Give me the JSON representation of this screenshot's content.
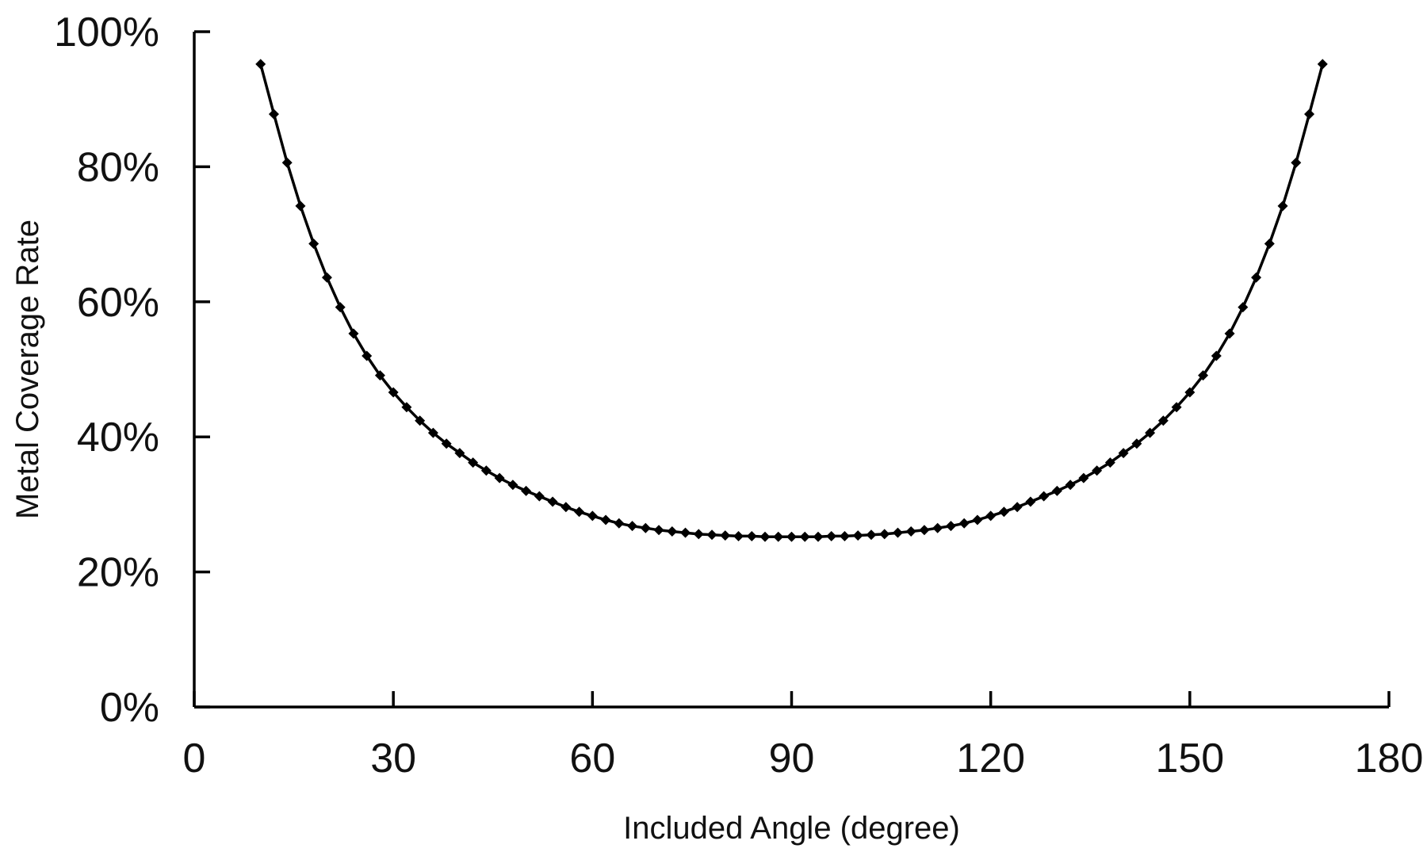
{
  "chart_data": {
    "type": "line",
    "title": "",
    "xlabel": "Included Angle (degree)",
    "ylabel": "Metal Coverage Rate",
    "xlim": [
      0,
      180
    ],
    "ylim": [
      0,
      100
    ],
    "x_ticks": [
      0,
      30,
      60,
      90,
      120,
      150,
      180
    ],
    "x_tick_labels": [
      "0",
      "30",
      "60",
      "90",
      "120",
      "150",
      "180"
    ],
    "y_ticks": [
      0,
      20,
      40,
      60,
      80,
      100
    ],
    "y_tick_labels": [
      "0%",
      "20%",
      "40%",
      "60%",
      "80%",
      "100%"
    ],
    "grid": false,
    "legend": "none",
    "series": [
      {
        "color": "#000000",
        "marker": "diamond",
        "x": [
          10,
          12,
          14,
          16,
          18,
          20,
          22,
          24,
          26,
          28,
          30,
          32,
          34,
          36,
          38,
          40,
          42,
          44,
          46,
          48,
          50,
          52,
          54,
          56,
          58,
          60,
          62,
          64,
          66,
          68,
          70,
          72,
          74,
          76,
          78,
          80,
          82,
          84,
          86,
          88,
          90,
          92,
          94,
          96,
          98,
          100,
          102,
          104,
          106,
          108,
          110,
          112,
          114,
          116,
          118,
          120,
          122,
          124,
          126,
          128,
          130,
          132,
          134,
          136,
          138,
          140,
          142,
          144,
          146,
          148,
          150,
          152,
          154,
          156,
          158,
          160,
          162,
          164,
          166,
          168,
          170
        ],
        "values": [
          95.2,
          87.8,
          80.6,
          74.2,
          68.6,
          63.6,
          59.2,
          55.3,
          52.0,
          49.1,
          46.6,
          44.4,
          42.4,
          40.6,
          39.0,
          37.6,
          36.2,
          35.0,
          33.9,
          32.9,
          32.0,
          31.2,
          30.4,
          29.6,
          28.9,
          28.3,
          27.7,
          27.2,
          26.8,
          26.5,
          26.2,
          26.0,
          25.8,
          25.6,
          25.5,
          25.4,
          25.3,
          25.3,
          25.2,
          25.2,
          25.2,
          25.2,
          25.2,
          25.3,
          25.3,
          25.4,
          25.5,
          25.6,
          25.8,
          26.0,
          26.2,
          26.5,
          26.8,
          27.2,
          27.7,
          28.3,
          28.9,
          29.6,
          30.4,
          31.2,
          32.0,
          32.9,
          33.9,
          35.0,
          36.2,
          37.6,
          39.0,
          40.6,
          42.4,
          44.4,
          46.6,
          49.1,
          52.0,
          55.3,
          59.2,
          63.6,
          68.6,
          74.2,
          80.6,
          87.8,
          95.2
        ]
      }
    ]
  }
}
